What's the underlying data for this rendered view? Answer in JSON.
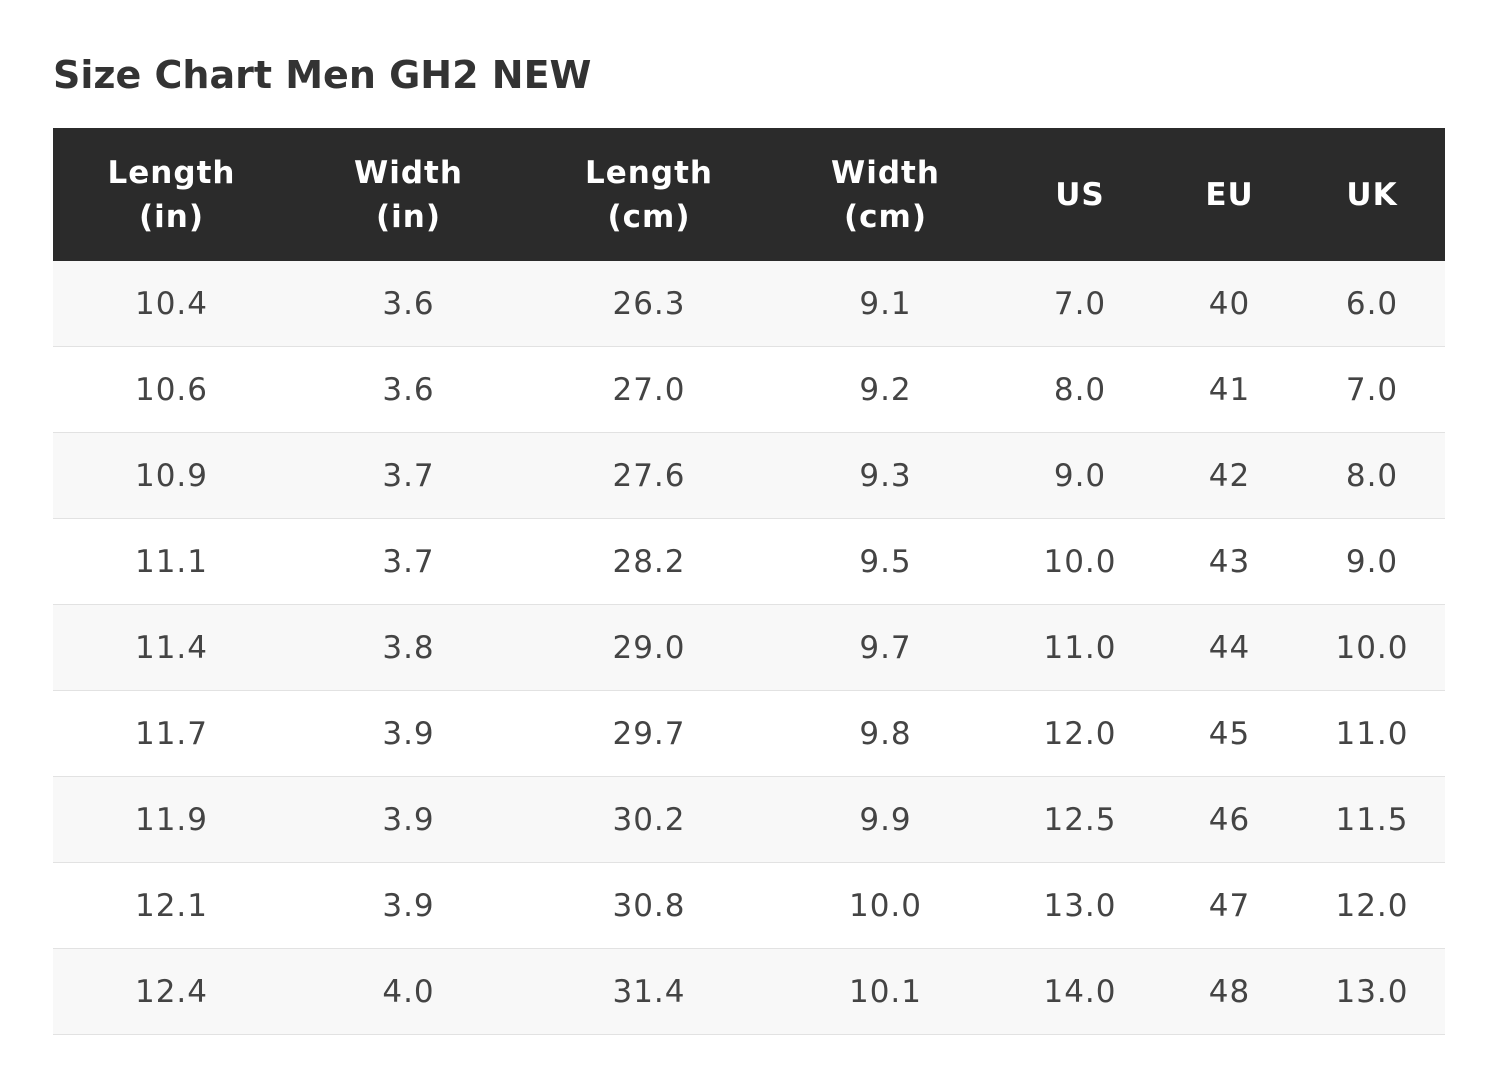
{
  "title": "Size Chart Men GH2 NEW",
  "table": {
    "header": [
      [
        "Length",
        "(in)"
      ],
      [
        "Width",
        "(in)"
      ],
      [
        "Length",
        "(cm)"
      ],
      [
        "Width",
        "(cm)"
      ],
      [
        "US"
      ],
      [
        "EU"
      ],
      [
        "UK"
      ]
    ],
    "rows": [
      [
        "10.4",
        "3.6",
        "26.3",
        "9.1",
        "7.0",
        "40",
        "6.0"
      ],
      [
        "10.6",
        "3.6",
        "27.0",
        "9.2",
        "8.0",
        "41",
        "7.0"
      ],
      [
        "10.9",
        "3.7",
        "27.6",
        "9.3",
        "9.0",
        "42",
        "8.0"
      ],
      [
        "11.1",
        "3.7",
        "28.2",
        "9.5",
        "10.0",
        "43",
        "9.0"
      ],
      [
        "11.4",
        "3.8",
        "29.0",
        "9.7",
        "11.0",
        "44",
        "10.0"
      ],
      [
        "11.7",
        "3.9",
        "29.7",
        "9.8",
        "12.0",
        "45",
        "11.0"
      ],
      [
        "11.9",
        "3.9",
        "30.2",
        "9.9",
        "12.5",
        "46",
        "11.5"
      ],
      [
        "12.1",
        "3.9",
        "30.8",
        "10.0",
        "13.0",
        "47",
        "12.0"
      ],
      [
        "12.4",
        "4.0",
        "31.4",
        "10.1",
        "14.0",
        "48",
        "13.0"
      ]
    ]
  }
}
